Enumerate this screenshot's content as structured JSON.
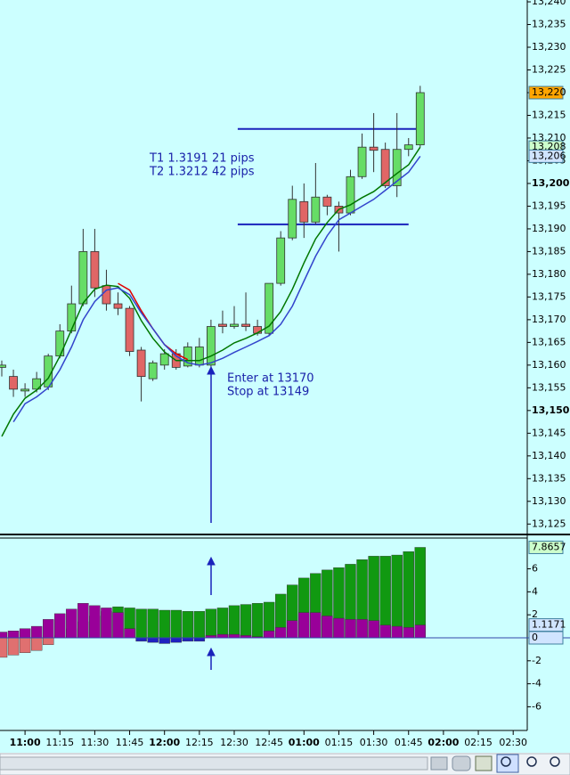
{
  "chart_data": {
    "type": "candlestick",
    "categories": [
      null,
      null,
      "11:00",
      null,
      null,
      "11:15",
      null,
      null,
      "11:30",
      null,
      null,
      "11:45",
      null,
      null,
      "12:00",
      null,
      null,
      "12:15",
      null,
      null,
      "12:30",
      null,
      null,
      "12:45",
      null,
      null,
      "01:00",
      null,
      null,
      "01:15",
      null,
      null,
      "01:30",
      null,
      null,
      "01:45",
      null,
      null,
      "02:00",
      null,
      null,
      "02:15",
      null,
      null,
      "02:30"
    ],
    "open": [
      13.1595,
      13.1575,
      13.1543,
      13.1547,
      13.1552,
      13.162,
      13.1675,
      13.1735,
      13.185,
      13.1775,
      13.1735,
      13.1725,
      13.1633,
      13.157,
      13.16,
      13.1625,
      13.1598,
      13.16,
      13.16,
      13.169,
      13.1685,
      13.169,
      13.1685,
      13.167,
      13.178,
      13.188,
      13.196,
      13.1915,
      13.197,
      13.195,
      13.1935,
      13.2015,
      13.208,
      13.2075,
      13.1995,
      13.2075,
      13.2085,
      null,
      null,
      null,
      null,
      null,
      null,
      null,
      null
    ],
    "high": [
      13.161,
      13.159,
      13.156,
      13.1585,
      13.1625,
      13.169,
      13.1775,
      13.19,
      13.19,
      13.181,
      13.176,
      13.173,
      13.164,
      13.161,
      13.1635,
      13.1635,
      13.165,
      13.166,
      13.17,
      13.172,
      13.173,
      13.176,
      13.17,
      13.178,
      13.1895,
      13.1995,
      13.2,
      13.2045,
      13.1975,
      13.196,
      13.203,
      13.211,
      13.2155,
      13.209,
      13.2155,
      13.21,
      13.2215,
      null,
      null,
      null,
      null,
      null,
      null,
      null,
      null
    ],
    "low": [
      13.1575,
      13.153,
      13.153,
      13.154,
      13.1545,
      13.1615,
      13.167,
      13.173,
      13.175,
      13.172,
      13.171,
      13.162,
      13.152,
      13.1565,
      13.159,
      13.159,
      13.1595,
      13.1595,
      13.1595,
      13.167,
      13.168,
      13.1675,
      13.1665,
      13.1665,
      13.1775,
      13.1875,
      13.188,
      13.191,
      13.193,
      13.185,
      13.193,
      13.201,
      13.2025,
      13.199,
      13.197,
      13.206,
      13.208,
      null,
      null,
      null,
      null,
      null,
      null,
      null,
      null
    ],
    "close": [
      13.16,
      13.1547,
      13.1547,
      13.157,
      13.162,
      13.1675,
      13.1735,
      13.185,
      13.177,
      13.1735,
      13.1725,
      13.163,
      13.1575,
      13.1605,
      13.1625,
      13.1595,
      13.164,
      13.164,
      13.1685,
      13.1685,
      13.169,
      13.1685,
      13.167,
      13.178,
      13.188,
      13.1965,
      13.1915,
      13.197,
      13.195,
      13.1935,
      13.2015,
      13.208,
      13.2073,
      13.1995,
      13.2075,
      13.2085,
      13.22,
      null,
      null,
      null,
      null,
      null,
      null,
      null,
      null
    ],
    "up_color": "#66dd66",
    "down_color": "#e06666",
    "series": [
      {
        "color": "#e00000",
        "values": [
          null,
          null,
          null,
          null,
          null,
          null,
          null,
          null,
          null,
          null,
          13.178,
          13.1765,
          13.172,
          13.168,
          13.1645,
          13.1625,
          13.1612,
          null,
          null,
          null,
          null,
          null,
          null,
          null,
          null,
          null,
          null,
          null,
          null,
          null,
          null,
          null,
          null,
          null,
          null,
          null,
          null,
          null,
          null,
          null,
          null,
          null,
          null,
          null,
          null
        ]
      },
      {
        "color": "#007700",
        "values": [
          13.1443,
          13.1492,
          13.1527,
          13.1545,
          13.1571,
          13.162,
          13.1678,
          13.1737,
          13.1767,
          13.1776,
          13.1773,
          13.1747,
          13.1698,
          13.1659,
          13.1629,
          13.161,
          13.161,
          13.161,
          13.162,
          13.1633,
          13.1649,
          13.1659,
          13.1671,
          13.1686,
          13.1718,
          13.1767,
          13.1825,
          13.1878,
          13.1914,
          13.1943,
          13.1953,
          13.1969,
          13.1982,
          13.2002,
          13.2022,
          13.2041,
          13.208,
          null,
          null,
          null,
          null,
          null,
          null,
          null,
          null
        ]
      },
      {
        "color": "#3344cc",
        "values": [
          null,
          13.1475,
          13.1515,
          13.153,
          13.155,
          13.159,
          13.164,
          13.17,
          13.174,
          13.1765,
          13.177,
          13.1755,
          13.1715,
          13.168,
          13.1645,
          13.162,
          13.1605,
          13.16,
          13.1605,
          13.1615,
          13.1628,
          13.164,
          13.1652,
          13.1665,
          13.169,
          13.173,
          13.1785,
          13.184,
          13.1885,
          13.192,
          13.1935,
          13.195,
          13.1965,
          13.1985,
          13.2005,
          13.2025,
          13.206,
          null,
          null,
          null,
          null,
          null,
          null,
          null,
          null
        ]
      }
    ],
    "levels": [
      13.212,
      13.191
    ],
    "level_color": "#1a22bb",
    "annotations": [
      "T1 1.3191 21 pips",
      "T2 1.3212 42 pips",
      "Enter at 13170",
      "Stop at 13149"
    ],
    "ylim": [
      13.1227,
      13.2404
    ],
    "yticks": [
      {
        "value": 13.125,
        "label": "13,125"
      },
      {
        "value": 13.13,
        "label": "13,130"
      },
      {
        "value": 13.135,
        "label": "13,135"
      },
      {
        "value": 13.14,
        "label": "13,140"
      },
      {
        "value": 13.145,
        "label": "13,145"
      },
      {
        "value": 13.15,
        "label": "13,150"
      },
      {
        "value": 13.155,
        "label": "13,155"
      },
      {
        "value": 13.16,
        "label": "13,160"
      },
      {
        "value": 13.165,
        "label": "13,165"
      },
      {
        "value": 13.17,
        "label": "13,170"
      },
      {
        "value": 13.175,
        "label": "13,175"
      },
      {
        "value": 13.18,
        "label": "13,180"
      },
      {
        "value": 13.185,
        "label": "13,185"
      },
      {
        "value": 13.19,
        "label": "13,190"
      },
      {
        "value": 13.195,
        "label": "13,195"
      },
      {
        "value": 13.2,
        "label": "13,200"
      },
      {
        "value": 13.205,
        "label": "13,205"
      },
      {
        "value": 13.21,
        "label": "13,210"
      },
      {
        "value": 13.215,
        "label": "13,215"
      },
      {
        "value": 13.22,
        "label": "13,220"
      },
      {
        "value": 13.225,
        "label": "13,225"
      },
      {
        "value": 13.23,
        "label": "13,230"
      },
      {
        "value": 13.235,
        "label": "13,235"
      },
      {
        "value": 13.24,
        "label": "13,240"
      }
    ],
    "price_tags": [
      {
        "value": 13.22,
        "label": "13,220",
        "color": "#ffa500"
      },
      {
        "value": 13.208,
        "label": "13,208",
        "color": "#ccffcc"
      },
      {
        "value": 13.206,
        "label": "13,206",
        "color": "#d0e4ff"
      }
    ],
    "indicator": {
      "type": "bar",
      "series": [
        {
          "color": "#119911",
          "negative_color": "#e07070",
          "values": [
            -1.7,
            -1.5,
            -1.3,
            -1.1,
            -0.6,
            0.2,
            0.8,
            1.4,
            1.9,
            2.3,
            2.7,
            2.6,
            2.5,
            2.5,
            2.4,
            2.4,
            2.3,
            2.3,
            2.5,
            2.6,
            2.8,
            2.9,
            3.0,
            3.1,
            3.8,
            4.6,
            5.2,
            5.6,
            5.9,
            6.1,
            6.4,
            6.8,
            7.1,
            7.1,
            7.2,
            7.5,
            7.8657,
            null,
            null,
            null,
            null,
            null,
            null,
            null,
            null
          ]
        },
        {
          "color": "#990099",
          "negative_color": "#2020c0",
          "values": [
            0.5,
            0.6,
            0.8,
            1.0,
            1.6,
            2.1,
            2.5,
            3.0,
            2.8,
            2.6,
            2.2,
            0.8,
            -0.3,
            -0.4,
            -0.5,
            -0.4,
            -0.3,
            -0.3,
            0.2,
            0.3,
            0.3,
            0.2,
            0.1,
            0.6,
            0.9,
            1.5,
            2.2,
            2.2,
            1.9,
            1.7,
            1.6,
            1.6,
            1.5,
            1.1,
            1.0,
            0.9,
            1.1171,
            null,
            null,
            null,
            null,
            null,
            null,
            null,
            null
          ]
        }
      ],
      "ylim": [
        -8.06,
        8.6
      ],
      "yticks": [
        6,
        4,
        2,
        -2,
        -4,
        -6
      ],
      "value_tags": [
        {
          "value": 7.8657,
          "color": "#ccffcc"
        },
        {
          "value": 1.1171,
          "color": "#d0e4ff"
        },
        {
          "value": 0,
          "color": "#d0e4ff"
        }
      ]
    }
  }
}
